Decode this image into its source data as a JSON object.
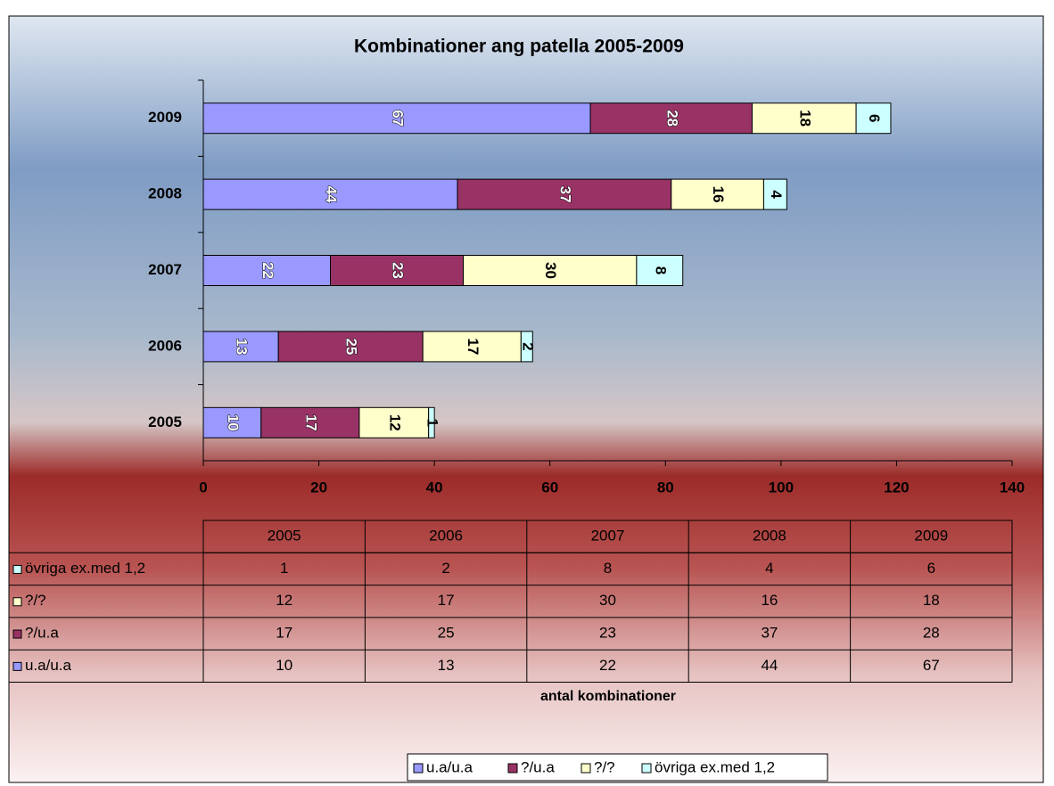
{
  "chart_data": {
    "type": "stacked-bar-horizontal",
    "title": "Kombinationer ang patella 2005-2009",
    "xlabel": "antal kombinationer",
    "categories": [
      "2005",
      "2006",
      "2007",
      "2008",
      "2009"
    ],
    "series": [
      {
        "name": "u.a/u.a",
        "color": "#9999ff",
        "values": [
          10,
          13,
          22,
          44,
          67
        ]
      },
      {
        "name": "?/u.a",
        "color": "#993366",
        "values": [
          17,
          25,
          23,
          37,
          28
        ]
      },
      {
        "name": "?/?",
        "color": "#ffffcc",
        "values": [
          12,
          17,
          30,
          16,
          18
        ]
      },
      {
        "name": "övriga ex.med 1,2",
        "color": "#ccffff",
        "values": [
          1,
          2,
          8,
          4,
          6
        ]
      }
    ],
    "xlim": [
      0,
      140
    ],
    "xticks": [
      0,
      20,
      40,
      60,
      80,
      100,
      120,
      140
    ],
    "legend": "bottom",
    "data_table": true
  }
}
